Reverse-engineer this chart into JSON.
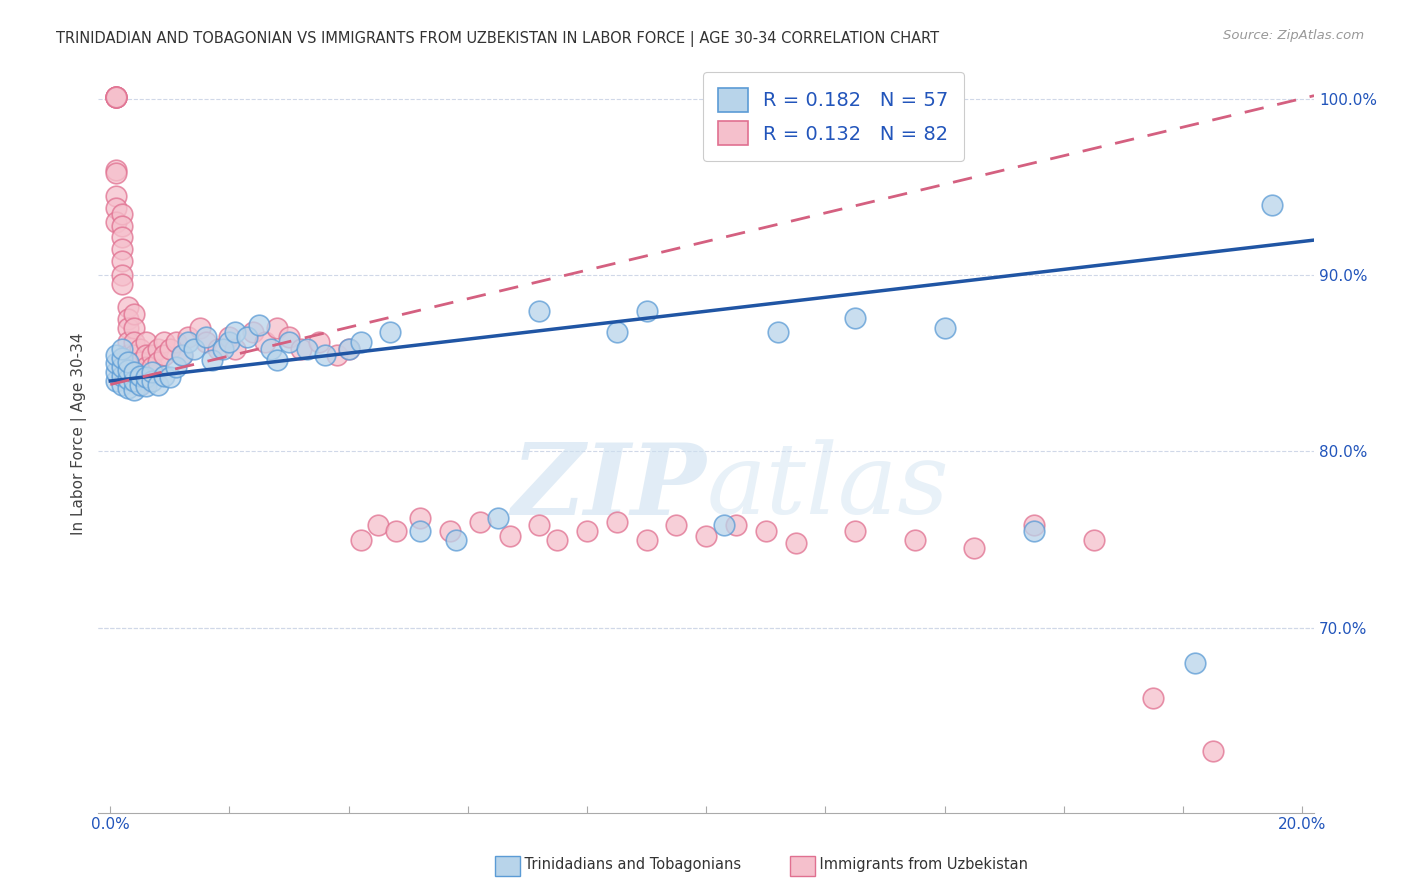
{
  "title": "TRINIDADIAN AND TOBAGONIAN VS IMMIGRANTS FROM UZBEKISTAN IN LABOR FORCE | AGE 30-34 CORRELATION CHART",
  "source": "Source: ZipAtlas.com",
  "ylabel": "In Labor Force | Age 30-34",
  "legend_label_blue": "Trinidadians and Tobagonians",
  "legend_label_pink": "Immigrants from Uzbekistan",
  "R_blue": "0.182",
  "N_blue": "57",
  "R_pink": "0.132",
  "N_pink": "82",
  "color_blue_fill": "#b8d4ea",
  "color_blue_edge": "#5b9bd5",
  "color_pink_fill": "#f5c0cc",
  "color_pink_edge": "#e07090",
  "color_blue_line": "#2055a4",
  "color_pink_line": "#d46080",
  "watermark_color": "#ccdff0",
  "grid_color": "#d0d8e8",
  "xlim": [
    -0.002,
    0.202
  ],
  "ylim": [
    0.595,
    1.025
  ],
  "ytick_positions": [
    0.7,
    0.8,
    0.9,
    1.0
  ],
  "ytick_labels": [
    "70.0%",
    "80.0%",
    "90.0%",
    "100.0%"
  ],
  "xtick_show": [
    0.0,
    0.2
  ],
  "xtick_show_labels": [
    "0.0%",
    "20.0%"
  ],
  "blue_trend_y0": 0.84,
  "blue_trend_y1": 0.92,
  "pink_trend_y0": 0.838,
  "pink_trend_y1": 1.002,
  "blue_x": [
    0.001,
    0.001,
    0.001,
    0.001,
    0.002,
    0.002,
    0.002,
    0.002,
    0.002,
    0.003,
    0.003,
    0.003,
    0.003,
    0.004,
    0.004,
    0.004,
    0.005,
    0.005,
    0.006,
    0.006,
    0.007,
    0.007,
    0.008,
    0.009,
    0.01,
    0.011,
    0.012,
    0.013,
    0.014,
    0.016,
    0.017,
    0.019,
    0.02,
    0.021,
    0.023,
    0.025,
    0.027,
    0.028,
    0.03,
    0.033,
    0.036,
    0.04,
    0.042,
    0.047,
    0.052,
    0.058,
    0.065,
    0.072,
    0.085,
    0.09,
    0.103,
    0.112,
    0.125,
    0.14,
    0.155,
    0.182,
    0.195
  ],
  "blue_y": [
    0.84,
    0.845,
    0.85,
    0.855,
    0.838,
    0.843,
    0.848,
    0.853,
    0.858,
    0.836,
    0.841,
    0.846,
    0.851,
    0.835,
    0.84,
    0.845,
    0.838,
    0.843,
    0.837,
    0.842,
    0.84,
    0.845,
    0.838,
    0.843,
    0.842,
    0.848,
    0.855,
    0.862,
    0.858,
    0.865,
    0.852,
    0.858,
    0.862,
    0.868,
    0.865,
    0.872,
    0.858,
    0.852,
    0.862,
    0.858,
    0.855,
    0.858,
    0.862,
    0.868,
    0.755,
    0.75,
    0.762,
    0.88,
    0.868,
    0.88,
    0.758,
    0.868,
    0.876,
    0.87,
    0.755,
    0.68,
    0.94
  ],
  "pink_x": [
    0.001,
    0.001,
    0.001,
    0.001,
    0.001,
    0.001,
    0.001,
    0.001,
    0.001,
    0.001,
    0.002,
    0.002,
    0.002,
    0.002,
    0.002,
    0.002,
    0.002,
    0.003,
    0.003,
    0.003,
    0.003,
    0.003,
    0.003,
    0.004,
    0.004,
    0.004,
    0.004,
    0.005,
    0.005,
    0.005,
    0.005,
    0.006,
    0.006,
    0.006,
    0.006,
    0.007,
    0.007,
    0.008,
    0.008,
    0.009,
    0.009,
    0.01,
    0.011,
    0.012,
    0.013,
    0.015,
    0.016,
    0.018,
    0.02,
    0.021,
    0.024,
    0.026,
    0.028,
    0.03,
    0.032,
    0.035,
    0.038,
    0.04,
    0.042,
    0.045,
    0.048,
    0.052,
    0.057,
    0.062,
    0.067,
    0.072,
    0.075,
    0.08,
    0.085,
    0.09,
    0.095,
    0.1,
    0.105,
    0.11,
    0.115,
    0.125,
    0.135,
    0.145,
    0.155,
    0.165,
    0.175,
    0.185
  ],
  "pink_y": [
    1.001,
    1.001,
    1.001,
    1.001,
    1.001,
    0.96,
    0.958,
    0.945,
    0.938,
    0.93,
    0.935,
    0.928,
    0.922,
    0.915,
    0.908,
    0.9,
    0.895,
    0.882,
    0.875,
    0.87,
    0.862,
    0.855,
    0.848,
    0.878,
    0.87,
    0.862,
    0.855,
    0.858,
    0.851,
    0.845,
    0.838,
    0.862,
    0.855,
    0.848,
    0.84,
    0.855,
    0.848,
    0.858,
    0.851,
    0.862,
    0.855,
    0.858,
    0.862,
    0.855,
    0.865,
    0.87,
    0.862,
    0.858,
    0.865,
    0.858,
    0.868,
    0.862,
    0.87,
    0.865,
    0.858,
    0.862,
    0.855,
    0.858,
    0.75,
    0.758,
    0.755,
    0.762,
    0.755,
    0.76,
    0.752,
    0.758,
    0.75,
    0.755,
    0.76,
    0.75,
    0.758,
    0.752,
    0.758,
    0.755,
    0.748,
    0.755,
    0.75,
    0.745,
    0.758,
    0.75,
    0.66,
    0.63
  ]
}
